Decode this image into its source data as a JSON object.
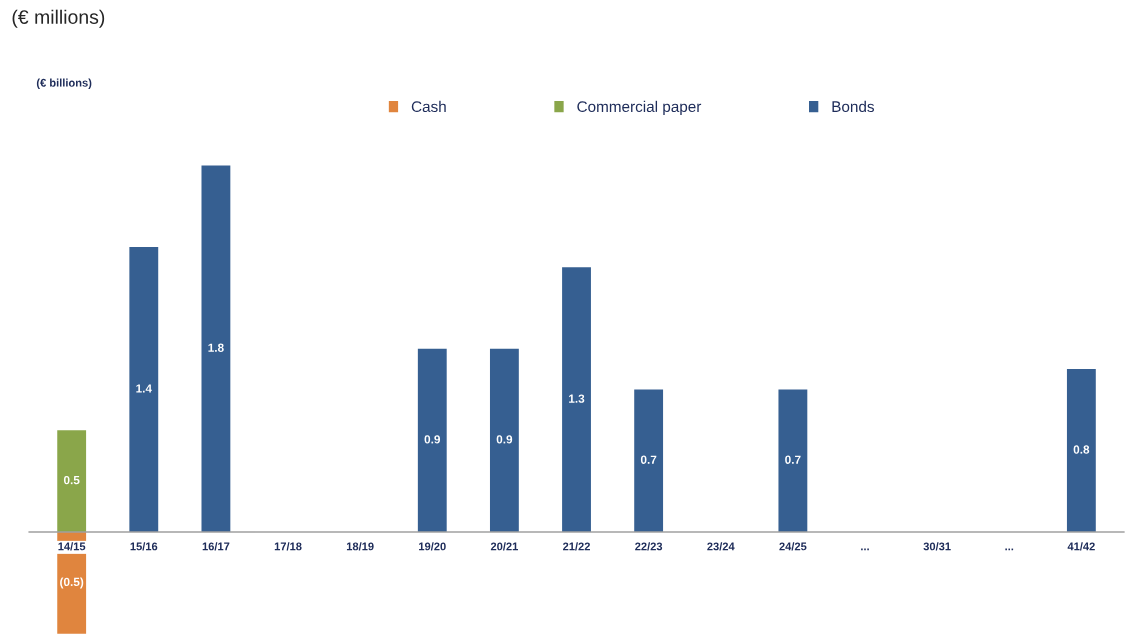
{
  "chart_data": {
    "type": "bar",
    "title": "(€ millions)",
    "subtitle": "(€ billions)",
    "categories": [
      "14/15",
      "15/16",
      "16/17",
      "17/18",
      "18/19",
      "19/20",
      "20/21",
      "21/22",
      "22/23",
      "23/24",
      "24/25",
      "...",
      "30/31",
      "...",
      "41/42"
    ],
    "legend": "top",
    "series": [
      {
        "name": "Cash",
        "color": "#e0853e",
        "values": [
          -0.5,
          null,
          null,
          null,
          null,
          null,
          null,
          null,
          null,
          null,
          null,
          null,
          null,
          null,
          null
        ],
        "value_labels": [
          "(0.5)",
          null,
          null,
          null,
          null,
          null,
          null,
          null,
          null,
          null,
          null,
          null,
          null,
          null,
          null
        ]
      },
      {
        "name": "Commercial paper",
        "color": "#8aa64a",
        "values": [
          0.5,
          null,
          null,
          null,
          null,
          null,
          null,
          null,
          null,
          null,
          null,
          null,
          null,
          null,
          null
        ],
        "value_labels": [
          "0.5",
          null,
          null,
          null,
          null,
          null,
          null,
          null,
          null,
          null,
          null,
          null,
          null,
          null,
          null
        ]
      },
      {
        "name": "Bonds",
        "color": "#365f91",
        "values": [
          null,
          1.4,
          1.8,
          null,
          null,
          0.9,
          0.9,
          1.3,
          0.7,
          null,
          0.7,
          null,
          null,
          null,
          0.8
        ],
        "value_labels": [
          null,
          "1.4",
          "1.8",
          null,
          null,
          "0.9",
          "0.9",
          "1.3",
          "0.7",
          null,
          "0.7",
          null,
          null,
          null,
          "0.8"
        ]
      }
    ]
  }
}
